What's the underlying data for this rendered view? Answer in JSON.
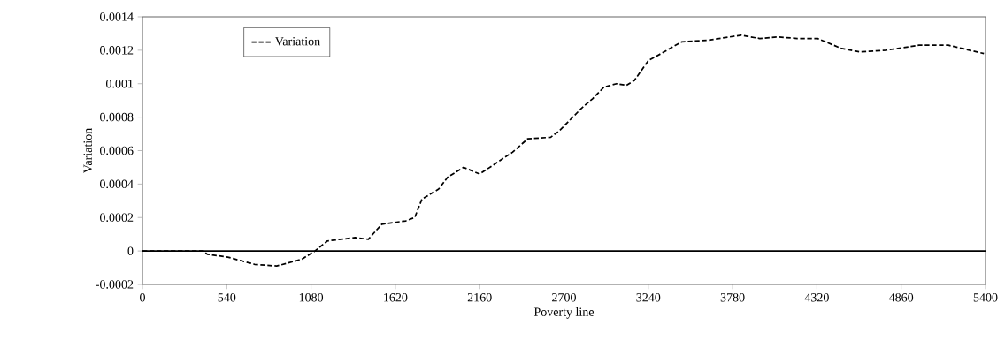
{
  "chart_data": {
    "type": "line",
    "xlabel": "Poverty line",
    "ylabel": "Variation",
    "x": [
      0,
      390,
      416,
      547,
      718,
      860,
      1020,
      1105,
      1185,
      1362,
      1447,
      1533,
      1687,
      1744,
      1790,
      1897,
      1954,
      2057,
      2160,
      2370,
      2467,
      2615,
      2672,
      2809,
      2883,
      2957,
      3037,
      3100,
      3151,
      3242,
      3322,
      3453,
      3624,
      3835,
      3954,
      4068,
      4194,
      4325,
      4479,
      4593,
      4764,
      4974,
      5162,
      5390
    ],
    "series": [
      {
        "name": "Variation",
        "color": "#000000",
        "values": [
          0,
          0,
          -2e-05,
          -3.7e-05,
          -8e-05,
          -9e-05,
          -5e-05,
          0,
          6e-05,
          8e-05,
          7e-05,
          0.00016,
          0.00018,
          0.0002,
          0.00031,
          0.00037,
          0.00044,
          0.0005,
          0.00046,
          0.00059,
          0.00067,
          0.00068,
          0.00072,
          0.00085,
          0.00091,
          0.00098,
          0.001,
          0.00099,
          0.00102,
          0.00114,
          0.00118,
          0.00125,
          0.00126,
          0.00129,
          0.00127,
          0.00128,
          0.00127,
          0.00127,
          0.00121,
          0.00119,
          0.0012,
          0.00123,
          0.00123,
          0.00118
        ]
      }
    ],
    "xlim": [
      0,
      5400
    ],
    "ylim": [
      -0.0002,
      0.0014
    ],
    "xticks": [
      0,
      540,
      1080,
      1620,
      2160,
      2700,
      3240,
      3780,
      4320,
      4860,
      5400
    ],
    "yticks": [
      -0.0002,
      0,
      0.0002,
      0.0004,
      0.0006,
      0.0008,
      0.001,
      0.0012,
      0.0014
    ],
    "ref_lines": [
      {
        "axis": "y",
        "value": 0,
        "color": "#000000"
      }
    ],
    "legend": "top left",
    "grid": false,
    "marker": "none",
    "line_style": "dashed"
  }
}
